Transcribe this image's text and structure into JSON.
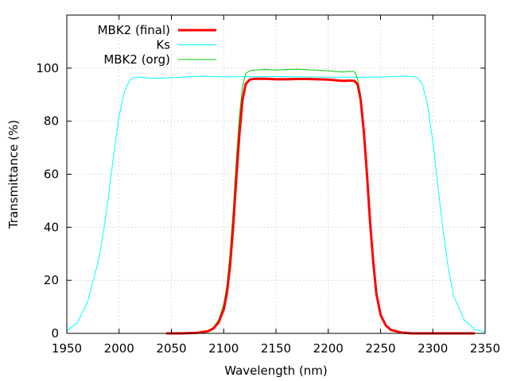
{
  "chart_data": {
    "type": "line",
    "title": "",
    "xlabel": "Wavelength (nm)",
    "ylabel": "Transmittance (%)",
    "xlim": [
      1950,
      2350
    ],
    "ylim": [
      0,
      120
    ],
    "x_ticks": [
      1950,
      2000,
      2050,
      2100,
      2150,
      2200,
      2250,
      2300,
      2350
    ],
    "y_ticks": [
      0,
      20,
      40,
      60,
      80,
      100
    ],
    "grid": true,
    "legend_position": "top-left",
    "series": [
      {
        "name": "MBK2 (final)",
        "color": "#ff0000",
        "width": "thick",
        "x": [
          2045,
          2060,
          2075,
          2085,
          2090,
          2095,
          2100,
          2103,
          2106,
          2109,
          2112,
          2115,
          2118,
          2121,
          2125,
          2130,
          2140,
          2150,
          2160,
          2170,
          2180,
          2190,
          2200,
          2210,
          2215,
          2220,
          2225,
          2228,
          2231,
          2234,
          2237,
          2240,
          2243,
          2246,
          2250,
          2255,
          2260,
          2270,
          2280,
          2300,
          2340
        ],
        "y": [
          0,
          0,
          0.2,
          0.8,
          1.8,
          4,
          9,
          15,
          25,
          40,
          58,
          75,
          88,
          94,
          95.7,
          96,
          96,
          95.8,
          95.8,
          95.9,
          95.9,
          95.8,
          95.7,
          95.3,
          95.2,
          95.3,
          95.2,
          94,
          88,
          76,
          60,
          42,
          27,
          15,
          7,
          3,
          1.3,
          0.3,
          0,
          0,
          0
        ]
      },
      {
        "name": "Ks",
        "color": "#00ffff",
        "width": "thin",
        "x": [
          1950,
          1960,
          1970,
          1980,
          1985,
          1990,
          1995,
          2000,
          2005,
          2010,
          2015,
          2020,
          2030,
          2040,
          2060,
          2080,
          2100,
          2150,
          2200,
          2250,
          2270,
          2280,
          2285,
          2290,
          2295,
          2300,
          2305,
          2310,
          2315,
          2320,
          2330,
          2340,
          2350
        ],
        "y": [
          1,
          4,
          12,
          27,
          38,
          52,
          68,
          82,
          91,
          95.5,
          96.6,
          96.6,
          96.2,
          96.2,
          96.6,
          97,
          96.7,
          96.8,
          96.6,
          96.6,
          97,
          96.8,
          96.6,
          94,
          86,
          72,
          55,
          38,
          24,
          14,
          5,
          1.5,
          0.5
        ]
      },
      {
        "name": "MBK2 (org)",
        "color": "#00cc00",
        "width": "thin",
        "x": [
          2045,
          2060,
          2075,
          2085,
          2090,
          2095,
          2100,
          2103,
          2106,
          2109,
          2112,
          2115,
          2118,
          2121,
          2125,
          2130,
          2140,
          2150,
          2160,
          2170,
          2180,
          2190,
          2200,
          2210,
          2215,
          2220,
          2225,
          2228,
          2231,
          2234,
          2237,
          2240,
          2243,
          2246,
          2250,
          2255,
          2260,
          2270,
          2280,
          2300,
          2340
        ],
        "y": [
          0,
          0,
          0.3,
          1,
          2.2,
          5,
          11,
          18,
          30,
          46,
          65,
          82,
          93,
          98,
          99,
          99.3,
          99.5,
          99.3,
          99.5,
          99.6,
          99.4,
          99.2,
          99,
          98.6,
          98.5,
          98.8,
          98.7,
          96,
          90,
          78,
          62,
          44,
          28,
          16,
          7.5,
          3.2,
          1.4,
          0.3,
          0,
          0,
          0
        ]
      }
    ]
  }
}
